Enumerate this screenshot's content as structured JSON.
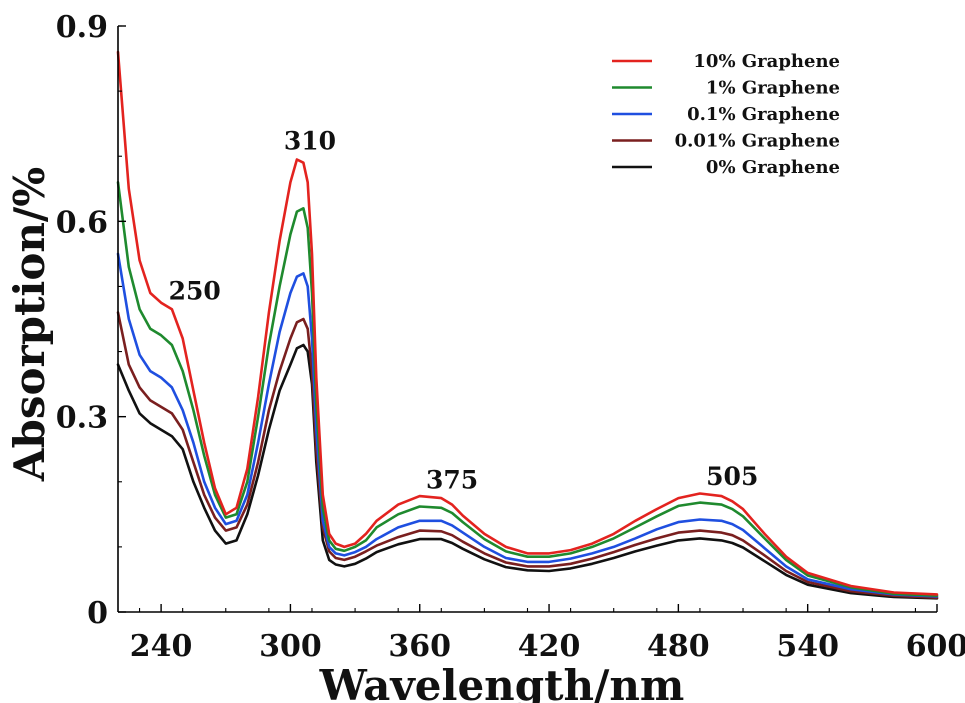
{
  "chart_data": {
    "type": "line",
    "xlabel": "Wavelength/nm",
    "ylabel": "Absorption/%",
    "xlim": [
      220,
      600
    ],
    "ylim": [
      0,
      0.9
    ],
    "xticks": [
      240,
      300,
      360,
      420,
      480,
      540,
      600
    ],
    "yticks": [
      0,
      0.3,
      0.6,
      0.9
    ],
    "ytick_labels": [
      "0",
      "0.3",
      "0.6",
      "0.9"
    ],
    "grid": false,
    "legend": "top-right",
    "annotations": [
      {
        "text": "250",
        "x": 250,
        "y": 0.48
      },
      {
        "text": "310",
        "x": 310,
        "y": 0.71
      },
      {
        "text": "375",
        "x": 375,
        "y": 0.19
      },
      {
        "text": "505",
        "x": 505,
        "y": 0.195
      }
    ],
    "x": [
      220,
      225,
      230,
      235,
      240,
      245,
      250,
      255,
      260,
      265,
      270,
      275,
      280,
      285,
      290,
      295,
      300,
      303,
      306,
      308,
      310,
      312,
      315,
      318,
      321,
      325,
      330,
      335,
      340,
      350,
      360,
      370,
      375,
      380,
      390,
      400,
      410,
      420,
      430,
      440,
      450,
      460,
      470,
      480,
      490,
      500,
      505,
      510,
      520,
      530,
      540,
      560,
      580,
      600
    ],
    "series": [
      {
        "name": "10% Graphene",
        "color": "#e3231f",
        "values": [
          0.86,
          0.65,
          0.54,
          0.49,
          0.475,
          0.465,
          0.42,
          0.34,
          0.26,
          0.19,
          0.15,
          0.16,
          0.22,
          0.33,
          0.46,
          0.57,
          0.66,
          0.695,
          0.69,
          0.66,
          0.55,
          0.36,
          0.18,
          0.12,
          0.105,
          0.1,
          0.105,
          0.12,
          0.14,
          0.165,
          0.178,
          0.175,
          0.165,
          0.148,
          0.12,
          0.1,
          0.09,
          0.09,
          0.095,
          0.105,
          0.12,
          0.14,
          0.158,
          0.175,
          0.182,
          0.178,
          0.17,
          0.158,
          0.12,
          0.085,
          0.06,
          0.04,
          0.03,
          0.027
        ]
      },
      {
        "name": "1% Graphene",
        "color": "#1f8a2e",
        "values": [
          0.66,
          0.53,
          0.465,
          0.435,
          0.425,
          0.41,
          0.37,
          0.31,
          0.24,
          0.18,
          0.145,
          0.15,
          0.2,
          0.3,
          0.41,
          0.5,
          0.58,
          0.615,
          0.62,
          0.59,
          0.49,
          0.32,
          0.16,
          0.11,
          0.097,
          0.094,
          0.1,
          0.11,
          0.13,
          0.15,
          0.162,
          0.16,
          0.152,
          0.138,
          0.112,
          0.093,
          0.085,
          0.085,
          0.09,
          0.1,
          0.113,
          0.13,
          0.147,
          0.163,
          0.168,
          0.165,
          0.158,
          0.147,
          0.113,
          0.08,
          0.056,
          0.038,
          0.028,
          0.025
        ]
      },
      {
        "name": "0.1% Graphene",
        "color": "#1f4fe0",
        "values": [
          0.55,
          0.45,
          0.395,
          0.37,
          0.36,
          0.345,
          0.31,
          0.26,
          0.2,
          0.16,
          0.135,
          0.14,
          0.18,
          0.26,
          0.35,
          0.43,
          0.49,
          0.515,
          0.52,
          0.5,
          0.42,
          0.28,
          0.14,
          0.1,
          0.09,
          0.087,
          0.092,
          0.1,
          0.112,
          0.13,
          0.14,
          0.14,
          0.133,
          0.122,
          0.1,
          0.083,
          0.077,
          0.077,
          0.082,
          0.09,
          0.1,
          0.113,
          0.127,
          0.138,
          0.142,
          0.14,
          0.135,
          0.126,
          0.098,
          0.07,
          0.05,
          0.035,
          0.027,
          0.024
        ]
      },
      {
        "name": "0.01% Graphene",
        "color": "#7a1f1f",
        "values": [
          0.46,
          0.38,
          0.345,
          0.325,
          0.315,
          0.305,
          0.28,
          0.23,
          0.18,
          0.145,
          0.125,
          0.13,
          0.165,
          0.23,
          0.31,
          0.37,
          0.42,
          0.445,
          0.45,
          0.435,
          0.37,
          0.25,
          0.13,
          0.093,
          0.083,
          0.08,
          0.085,
          0.093,
          0.102,
          0.115,
          0.125,
          0.124,
          0.118,
          0.108,
          0.09,
          0.076,
          0.07,
          0.07,
          0.074,
          0.082,
          0.092,
          0.103,
          0.113,
          0.122,
          0.125,
          0.122,
          0.118,
          0.11,
          0.087,
          0.063,
          0.046,
          0.032,
          0.025,
          0.022
        ]
      },
      {
        "name": "0% Graphene",
        "color": "#111111",
        "values": [
          0.38,
          0.34,
          0.305,
          0.29,
          0.28,
          0.27,
          0.25,
          0.2,
          0.16,
          0.125,
          0.105,
          0.11,
          0.15,
          0.21,
          0.28,
          0.34,
          0.38,
          0.405,
          0.41,
          0.4,
          0.35,
          0.23,
          0.11,
          0.08,
          0.073,
          0.07,
          0.074,
          0.082,
          0.092,
          0.104,
          0.112,
          0.112,
          0.106,
          0.097,
          0.081,
          0.069,
          0.064,
          0.063,
          0.067,
          0.074,
          0.083,
          0.093,
          0.102,
          0.11,
          0.113,
          0.11,
          0.106,
          0.099,
          0.078,
          0.057,
          0.042,
          0.029,
          0.023,
          0.021
        ]
      }
    ]
  }
}
